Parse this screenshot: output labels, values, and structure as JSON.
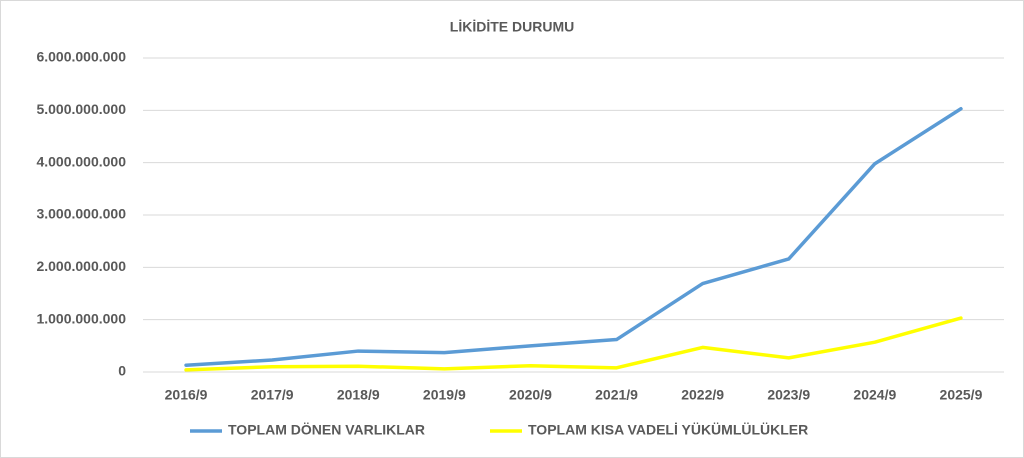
{
  "chart_data": {
    "type": "line",
    "title": "LİKİDİTE DURUMU",
    "categories": [
      "2016/9",
      "2017/9",
      "2018/9",
      "2019/9",
      "2020/9",
      "2021/9",
      "2022/9",
      "2023/9",
      "2024/9",
      "2025/9"
    ],
    "series": [
      {
        "name": "TOPLAM DÖNEN VARLIKLAR",
        "color": "#5b9bd5",
        "values": [
          130000000,
          230000000,
          400000000,
          370000000,
          500000000,
          620000000,
          1690000000,
          2160000000,
          3980000000,
          5030000000
        ]
      },
      {
        "name": "TOPLAM KISA VADELİ YÜKÜMLÜLÜKLER",
        "color": "#ffff00",
        "values": [
          40000000,
          100000000,
          110000000,
          60000000,
          120000000,
          80000000,
          470000000,
          270000000,
          570000000,
          1030000000
        ]
      }
    ],
    "ylim": [
      0,
      6000000000
    ],
    "yticks": [
      0,
      {
        "value": 1000000000,
        "label": "1.000.000.000"
      },
      {
        "value": 2000000000,
        "label": "2.000.000.000"
      },
      {
        "value": 3000000000,
        "label": "3.000.000.000"
      },
      {
        "value": 4000000000,
        "label": "4.000.000.000"
      },
      {
        "value": 5000000000,
        "label": "5.000.000.000"
      },
      {
        "value": 6000000000,
        "label": "6.000.000.000"
      }
    ],
    "grid": true,
    "legend": "bottom"
  }
}
